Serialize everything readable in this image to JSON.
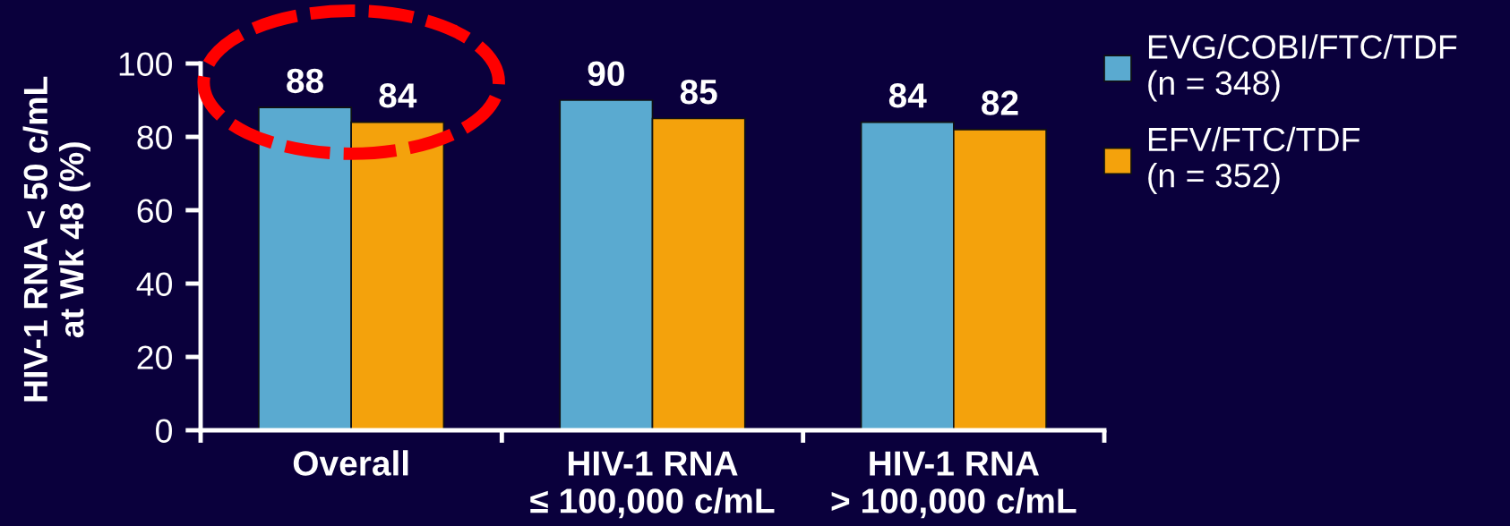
{
  "chart_data": {
    "type": "bar",
    "ylabel": "HIV-1 RNA < 50 c/mL\nat Wk 48 (%)",
    "categories": [
      "Overall",
      "HIV-1 RNA\n≤ 100,000 c/mL",
      "HIV-1 RNA\n> 100,000 c/mL"
    ],
    "series": [
      {
        "name": "EVG/COBI/FTC/TDF\n(n = 348)",
        "color": "#5aaad0",
        "values": [
          88,
          90,
          84
        ]
      },
      {
        "name": "EFV/FTC/TDF\n(n = 352)",
        "color": "#f4a20c",
        "values": [
          84,
          85,
          82
        ]
      }
    ],
    "ylim": [
      0,
      100
    ],
    "yticks": [
      0,
      20,
      40,
      60,
      80,
      100
    ],
    "data_labels": true,
    "legend": "top right",
    "grid": false
  }
}
